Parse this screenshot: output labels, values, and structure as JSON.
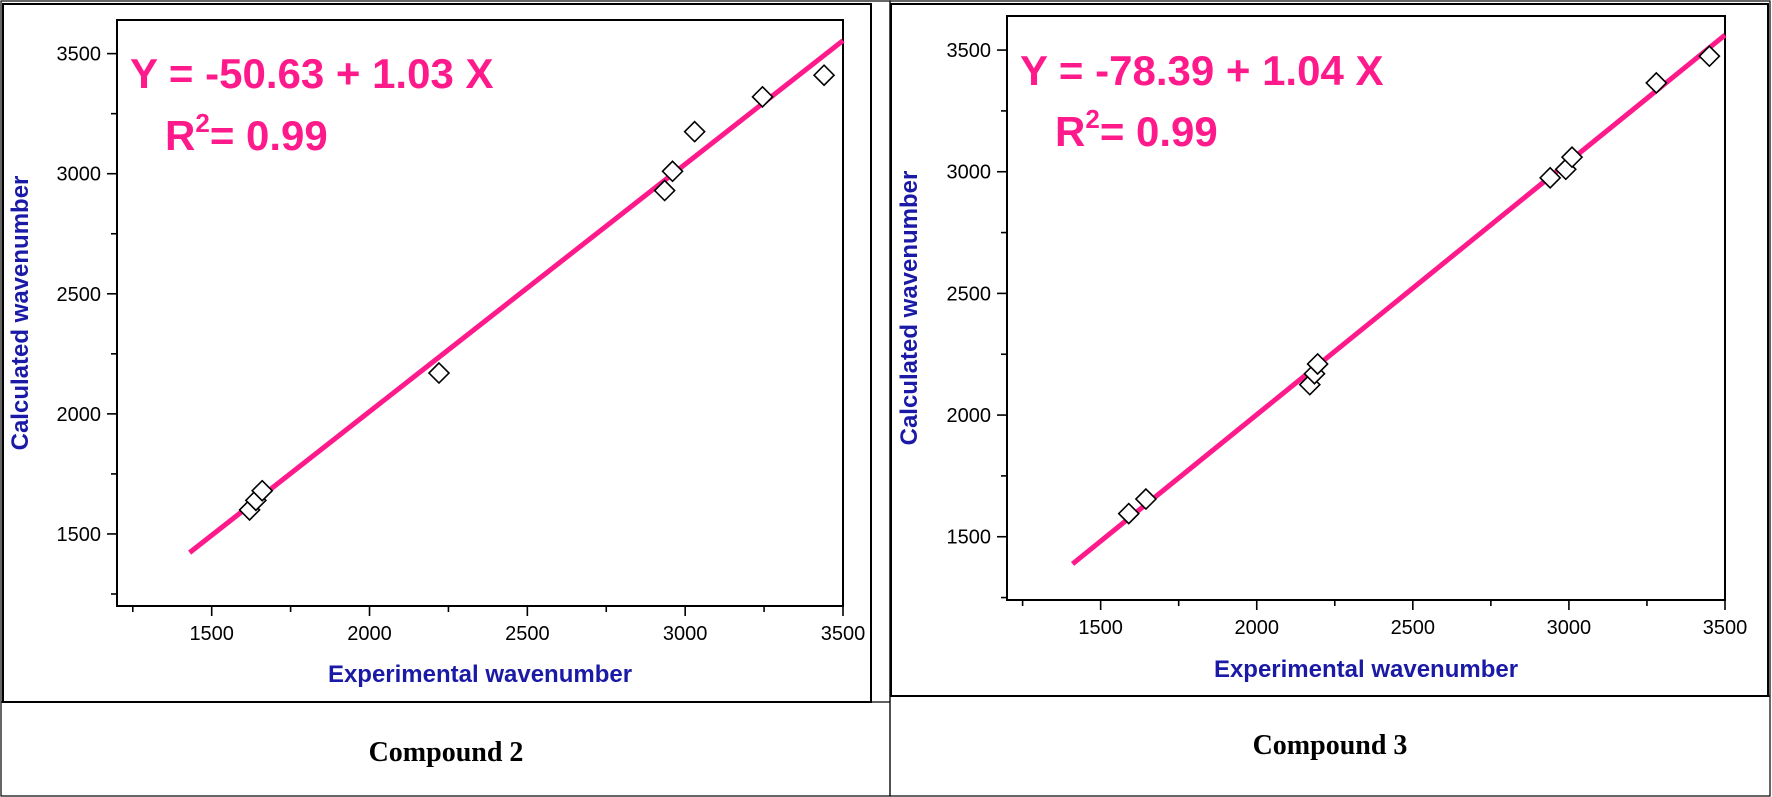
{
  "colors": {
    "fit_line": "#ff1a8c",
    "equation": "#ff1a8c",
    "axis_title": "#1a1aa6",
    "marker_stroke": "#000000"
  },
  "chart_data": [
    {
      "type": "scatter",
      "caption": "Compound 2",
      "xlabel": "Experimental wavenumber",
      "ylabel": "Calculated wavenumber",
      "xlim": [
        1200,
        3500
      ],
      "ylim": [
        1200,
        3640
      ],
      "x_ticks": [
        1500,
        2000,
        2500,
        3000,
        3500
      ],
      "y_ticks": [
        1500,
        2000,
        2500,
        3000,
        3500
      ],
      "equation": "Y = -50.63 + 1.03 X",
      "r2_label": "R",
      "r2_sup": "2",
      "r2_value": "= 0.99",
      "fit": {
        "intercept": -50.63,
        "slope": 1.03,
        "x_range": [
          1430,
          3500
        ]
      },
      "marker": "diamond",
      "points": [
        {
          "x": 1620,
          "y": 1600
        },
        {
          "x": 1640,
          "y": 1640
        },
        {
          "x": 1660,
          "y": 1680
        },
        {
          "x": 2220,
          "y": 2170
        },
        {
          "x": 2935,
          "y": 2930
        },
        {
          "x": 2960,
          "y": 3010
        },
        {
          "x": 3030,
          "y": 3175
        },
        {
          "x": 3245,
          "y": 3320
        },
        {
          "x": 3440,
          "y": 3410
        }
      ]
    },
    {
      "type": "scatter",
      "caption": "Compound 3",
      "xlabel": "Experimental wavenumber",
      "ylabel": "Calculated wavenumber",
      "xlim": [
        1200,
        3500
      ],
      "ylim": [
        1240,
        3640
      ],
      "x_ticks": [
        1500,
        2000,
        2500,
        3000,
        3500
      ],
      "y_ticks": [
        1500,
        2000,
        2500,
        3000,
        3500
      ],
      "equation": "Y = -78.39 + 1.04 X",
      "r2_label": "R",
      "r2_sup": "2",
      "r2_value": "= 0.99",
      "fit": {
        "intercept": -78.39,
        "slope": 1.04,
        "x_range": [
          1410,
          3500
        ]
      },
      "marker": "diamond",
      "points": [
        {
          "x": 1590,
          "y": 1595
        },
        {
          "x": 1645,
          "y": 1655
        },
        {
          "x": 2170,
          "y": 2125
        },
        {
          "x": 2185,
          "y": 2170
        },
        {
          "x": 2195,
          "y": 2210
        },
        {
          "x": 2940,
          "y": 2975
        },
        {
          "x": 2990,
          "y": 3010
        },
        {
          "x": 3010,
          "y": 3060
        },
        {
          "x": 3280,
          "y": 3365
        },
        {
          "x": 3450,
          "y": 3475
        }
      ]
    }
  ]
}
